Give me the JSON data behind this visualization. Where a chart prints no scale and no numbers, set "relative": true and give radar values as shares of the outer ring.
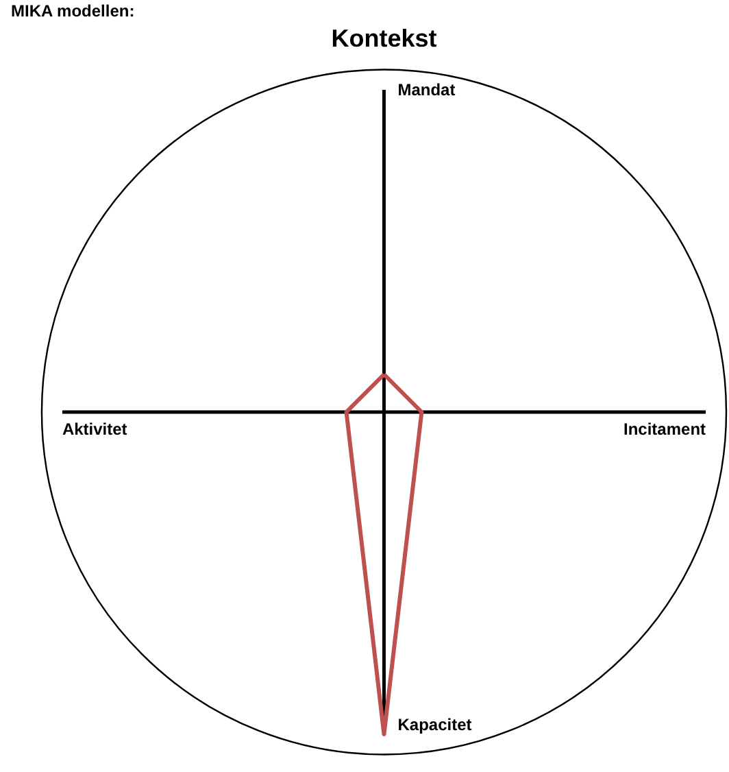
{
  "chart_data": {
    "type": "radar",
    "title": "Kontekst",
    "subtitle": "MIKA modellen:",
    "relative": true,
    "categories": [
      "Mandat",
      "Incitament",
      "Kapacitet",
      "Aktivitet"
    ],
    "series": [
      {
        "color": "#c0504d",
        "values": [
          0.11,
          0.11,
          0.94,
          0.11
        ]
      }
    ]
  }
}
